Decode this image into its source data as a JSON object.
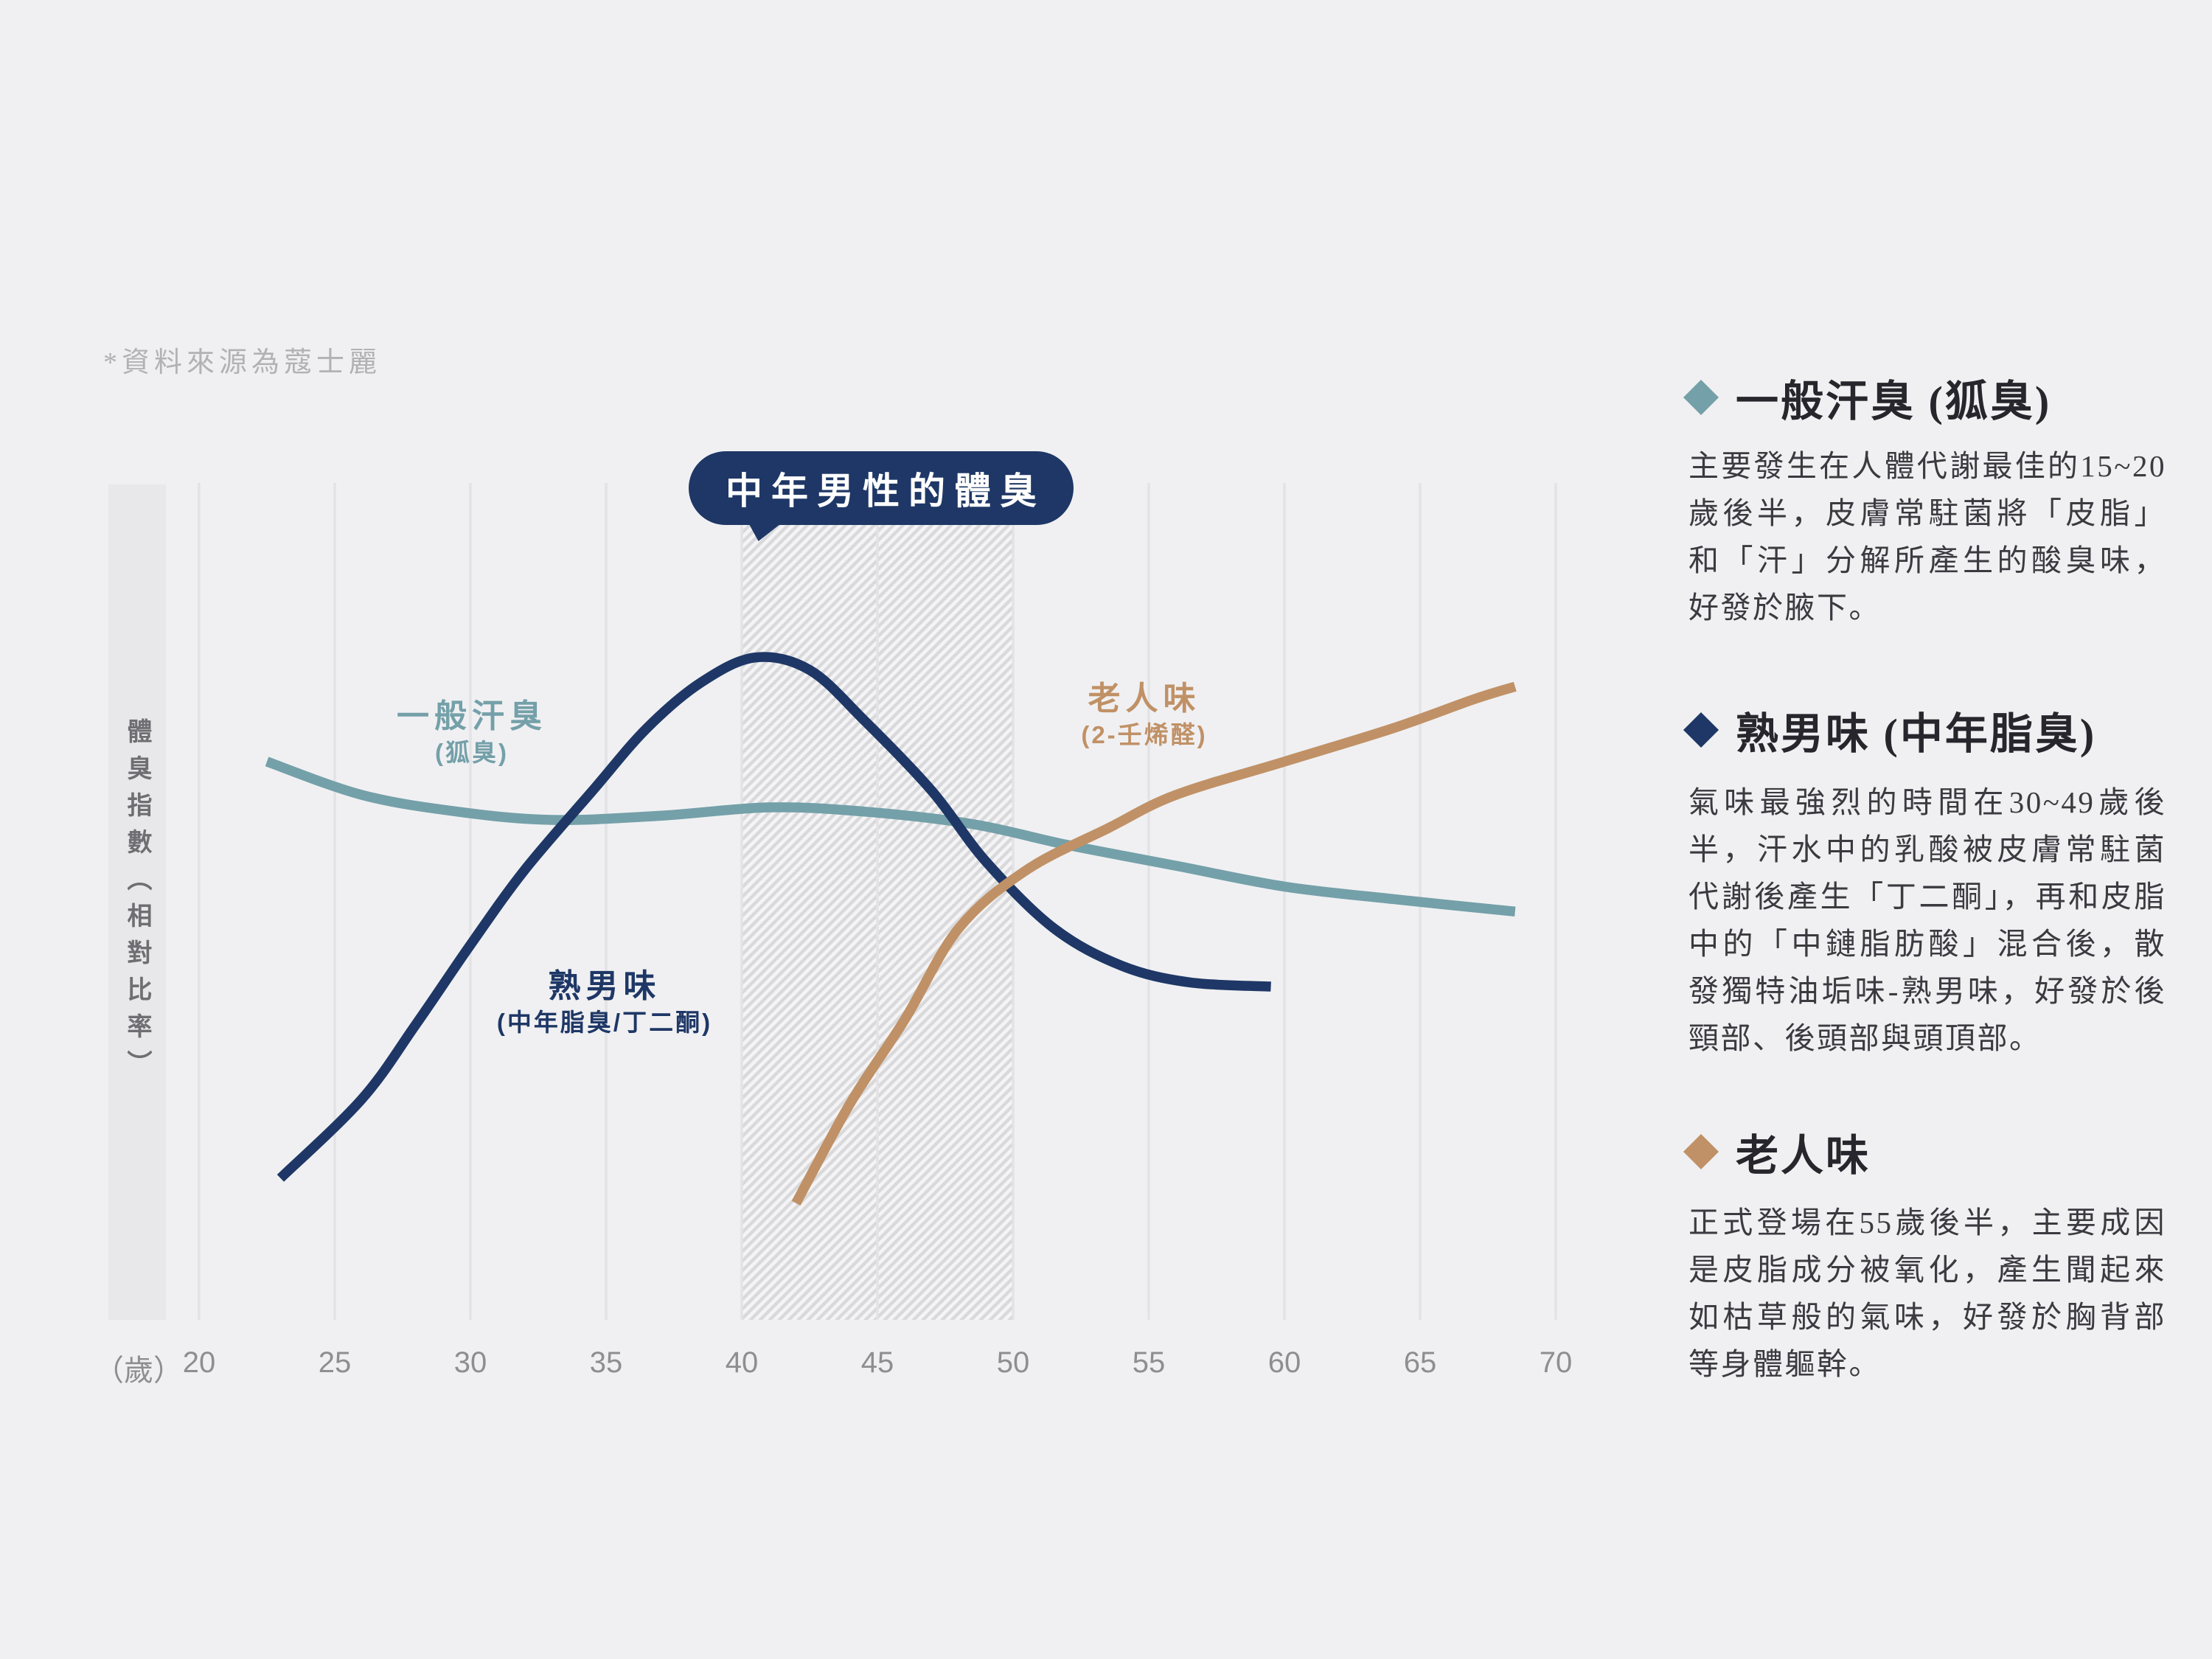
{
  "page": {
    "source_note": "*資料來源為蔻士麗"
  },
  "colors": {
    "navy": "#1e3766",
    "teal": "#74a0a9",
    "tan": "#c09166",
    "background": "#f0f0f2",
    "grid_line": "#e3e3e5",
    "axis_band": "#e8e8ea",
    "hatch_stripe": "#d9d9db",
    "hatch_base": "#f4f4f6",
    "heading_text": "#26262c",
    "body_text": "#3a3a40",
    "tick_text": "#8e8e92"
  },
  "chart": {
    "title_bubble": "中年男性的體臭",
    "y_axis_label": "體臭指數（相對比率）",
    "x_unit_label": "（歲）"
  },
  "curve_labels": {
    "sweat": {
      "name": "一般汗臭",
      "sub": "(狐臭)"
    },
    "middle": {
      "name": "熟男味",
      "sub": "(中年脂臭/丁二酮)"
    },
    "old": {
      "name": "老人味",
      "sub": "(2-壬烯醛)"
    }
  },
  "chart_data": {
    "type": "line",
    "title": "中年男性的體臭",
    "xlabel": "（歲）",
    "ylabel": "體臭指數（相對比率）",
    "xlim": [
      20,
      70
    ],
    "ylim": [
      0,
      100
    ],
    "x_ticks": [
      20,
      25,
      30,
      35,
      40,
      45,
      50,
      55,
      60,
      65,
      70
    ],
    "grid": "vertical-only",
    "legend_position": "inline-labels",
    "highlight_band_x": [
      40,
      50
    ],
    "series": [
      {
        "name": "一般汗臭 (狐臭)",
        "color": "#74a0a9",
        "points": [
          [
            22.5,
            67
          ],
          [
            26,
            63
          ],
          [
            29.5,
            61
          ],
          [
            33,
            60
          ],
          [
            37,
            60.5
          ],
          [
            41,
            61.5
          ],
          [
            44.5,
            61
          ],
          [
            48.5,
            59.5
          ],
          [
            52,
            57
          ],
          [
            56,
            54.5
          ],
          [
            60,
            52
          ],
          [
            64,
            50.5
          ],
          [
            68.5,
            49
          ]
        ]
      },
      {
        "name": "熟男味 (中年脂臭/丁二酮)",
        "color": "#1e3766",
        "points": [
          [
            23,
            17
          ],
          [
            26,
            26.5
          ],
          [
            28,
            35.5
          ],
          [
            30,
            45
          ],
          [
            32,
            54
          ],
          [
            34.5,
            63.5
          ],
          [
            36.5,
            71
          ],
          [
            38.5,
            76.5
          ],
          [
            40.5,
            79.5
          ],
          [
            42.5,
            78
          ],
          [
            44.5,
            72
          ],
          [
            47,
            63.5
          ],
          [
            49,
            55
          ],
          [
            51.5,
            47
          ],
          [
            54,
            42.5
          ],
          [
            56.5,
            40.5
          ],
          [
            59.5,
            40
          ]
        ]
      },
      {
        "name": "老人味 (2-壬烯醛)",
        "color": "#c09166",
        "points": [
          [
            42,
            14
          ],
          [
            44,
            26
          ],
          [
            46,
            36
          ],
          [
            48,
            47
          ],
          [
            50.5,
            54
          ],
          [
            53.5,
            59
          ],
          [
            56,
            63
          ],
          [
            60,
            67
          ],
          [
            64,
            71
          ],
          [
            67,
            74.5
          ],
          [
            68.5,
            76
          ]
        ]
      }
    ]
  },
  "panel": {
    "sections": [
      {
        "title": "一般汗臭 (狐臭)",
        "marker_color": "#74a0a9",
        "body": "主要發生在人體代謝最佳的15~20歲後半，皮膚常駐菌將「皮脂」和「汗」分解所產生的酸臭味，好發於腋下。"
      },
      {
        "title": "熟男味 (中年脂臭)",
        "marker_color": "#1e3766",
        "body": "氣味最強烈的時間在30~49歲後半，汗水中的乳酸被皮膚常駐菌代謝後產生「丁二酮」，再和皮脂中的「中鏈脂肪酸」混合後，散發獨特油垢味-熟男味，好發於後頸部、後頭部與頭頂部。"
      },
      {
        "title": "老人味",
        "marker_color": "#c09166",
        "body": "正式登場在55歲後半，主要成因是皮脂成分被氧化，產生聞起來如枯草般的氣味，好發於胸背部等身體軀幹。"
      }
    ]
  }
}
